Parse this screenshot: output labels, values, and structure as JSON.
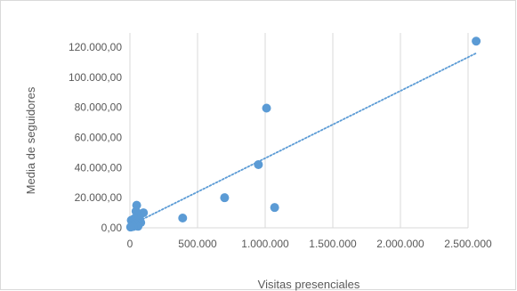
{
  "chart_data": {
    "type": "scatter",
    "title": "",
    "xlabel": "Visitas presenciales",
    "ylabel": "Media de seguidores",
    "xlim": [
      0,
      2500000
    ],
    "ylim": [
      0,
      120000
    ],
    "x_ticks": [
      0,
      500000,
      1000000,
      1500000,
      2000000,
      2500000
    ],
    "x_tick_labels": [
      "0",
      "500.000",
      "1.000.000",
      "1.500.000",
      "2.000.000",
      "2.500.000"
    ],
    "y_ticks": [
      0,
      20000,
      40000,
      60000,
      80000,
      100000,
      120000
    ],
    "y_tick_labels": [
      "0,00",
      "20.000,00",
      "40.000,00",
      "60.000,00",
      "80.000,00",
      "100.000,00",
      "120.000,00"
    ],
    "grid": "vertical",
    "legend": "none",
    "marker_color": "#5b9bd5",
    "trendline": {
      "type": "linear",
      "style": "dotted",
      "color": "#5b9bd5",
      "x": [
        0,
        2560000
      ],
      "y": [
        1500,
        116000
      ]
    },
    "points": [
      {
        "x": 2560000,
        "y": 124000
      },
      {
        "x": 1010000,
        "y": 79500
      },
      {
        "x": 950000,
        "y": 42000
      },
      {
        "x": 700000,
        "y": 20000
      },
      {
        "x": 1070000,
        "y": 13500
      },
      {
        "x": 390000,
        "y": 6500
      },
      {
        "x": 100000,
        "y": 10000
      },
      {
        "x": 50000,
        "y": 15000
      },
      {
        "x": 45000,
        "y": 11000
      },
      {
        "x": 70000,
        "y": 6500
      },
      {
        "x": 30000,
        "y": 6000
      },
      {
        "x": 10000,
        "y": 5000
      },
      {
        "x": 80000,
        "y": 3500
      },
      {
        "x": 55000,
        "y": 3000
      },
      {
        "x": 40000,
        "y": 2500
      },
      {
        "x": 20000,
        "y": 2000
      },
      {
        "x": 15000,
        "y": 1500
      },
      {
        "x": 60000,
        "y": 1000
      },
      {
        "x": 25000,
        "y": 800
      },
      {
        "x": 5000,
        "y": 500
      }
    ]
  }
}
